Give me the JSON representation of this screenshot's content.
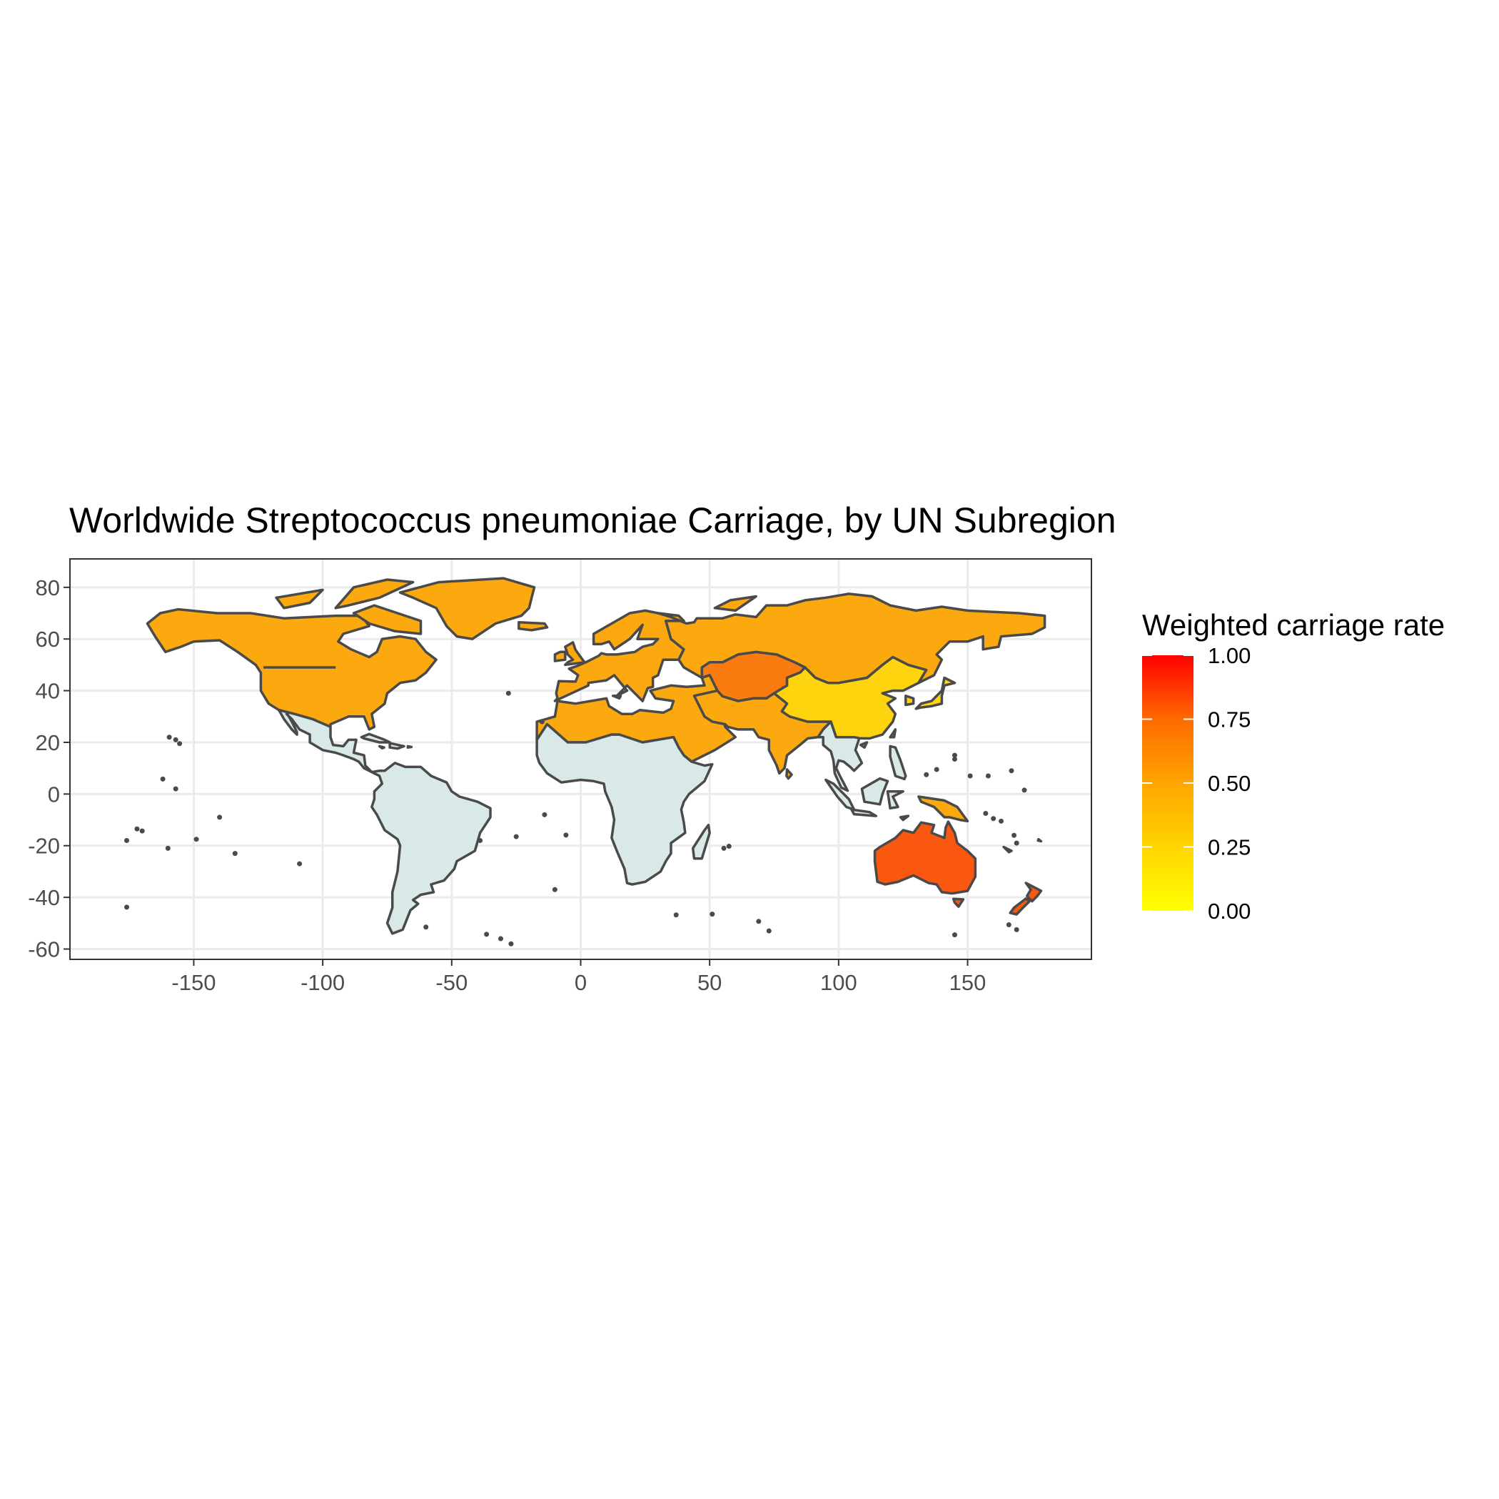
{
  "chart_data": {
    "type": "choropleth-map",
    "title": "Worldwide Streptococcus pneumoniae Carriage, by UN Subregion",
    "xlabel": "",
    "ylabel": "",
    "xlim": [
      -198,
      198
    ],
    "ylim": [
      -64,
      91
    ],
    "x_ticks": [
      -150,
      -100,
      -50,
      0,
      50,
      100,
      150
    ],
    "x_tick_labels": [
      "-150",
      "-100",
      "-50",
      "0",
      "50",
      "100",
      "150"
    ],
    "y_ticks": [
      80,
      60,
      40,
      20,
      0,
      -20,
      -40,
      -60
    ],
    "y_tick_labels": [
      "80",
      "60",
      "40",
      "20",
      "0",
      "-20",
      "-40",
      "-60"
    ],
    "grid": true,
    "legend": {
      "title": "Weighted carriage rate",
      "placement": "right",
      "low_color": "#ffff00",
      "high_color": "#ff0000",
      "breaks": [
        1.0,
        0.75,
        0.5,
        0.25,
        0.0
      ],
      "labels": [
        "1.00",
        "0.75",
        "0.50",
        "0.25",
        "0.00"
      ]
    },
    "regions": [
      {
        "name": "Northern America",
        "value": 0.44,
        "color": "#fba90f"
      },
      {
        "name": "Europe",
        "value": 0.44,
        "color": "#fba90f"
      },
      {
        "name": "Northern Africa & Western Asia",
        "value": 0.44,
        "color": "#fba90f"
      },
      {
        "name": "Southern Asia",
        "value": 0.44,
        "color": "#fba90f"
      },
      {
        "name": "Central Asia",
        "value": 0.58,
        "color": "#fa7c11"
      },
      {
        "name": "Eastern Asia",
        "value": 0.21,
        "color": "#fdd40d"
      },
      {
        "name": "Australia and New Zealand",
        "value": 0.71,
        "color": "#fa5810"
      },
      {
        "name": "Melanesia",
        "value": 0.44,
        "color": "#fba90f"
      },
      {
        "name": "Latin America & Caribbean",
        "value": null,
        "color": "#d8e9e8"
      },
      {
        "name": "Sub-Saharan Africa",
        "value": null,
        "color": "#d8e9e8"
      },
      {
        "name": "South-eastern Asia",
        "value": null,
        "color": "#d8e9e8"
      }
    ]
  }
}
